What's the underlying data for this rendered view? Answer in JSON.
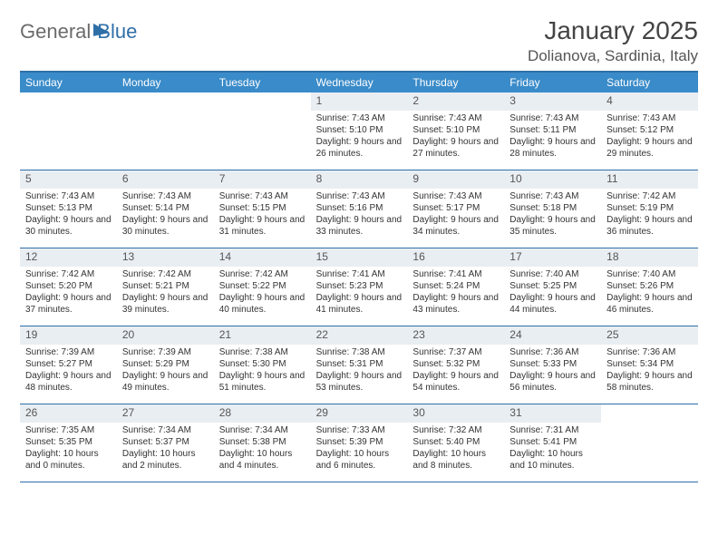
{
  "brand": {
    "part1": "General",
    "part2": "Blue"
  },
  "title": "January 2025",
  "location": "Dolianova, Sardinia, Italy",
  "colors": {
    "header_bg": "#3a8bc9",
    "border": "#2f6fa8",
    "daynum_bg": "#e9eef3",
    "text": "#333333",
    "logo_gray": "#6b6b6b"
  },
  "days_of_week": [
    "Sunday",
    "Monday",
    "Tuesday",
    "Wednesday",
    "Thursday",
    "Friday",
    "Saturday"
  ],
  "labels": {
    "sunrise": "Sunrise:",
    "sunset": "Sunset:",
    "daylight": "Daylight:"
  },
  "cells": [
    {
      "n": "",
      "blank": true
    },
    {
      "n": "",
      "blank": true
    },
    {
      "n": "",
      "blank": true
    },
    {
      "n": "1",
      "sr": "7:43 AM",
      "ss": "5:10 PM",
      "dl": "9 hours and 26 minutes."
    },
    {
      "n": "2",
      "sr": "7:43 AM",
      "ss": "5:10 PM",
      "dl": "9 hours and 27 minutes."
    },
    {
      "n": "3",
      "sr": "7:43 AM",
      "ss": "5:11 PM",
      "dl": "9 hours and 28 minutes."
    },
    {
      "n": "4",
      "sr": "7:43 AM",
      "ss": "5:12 PM",
      "dl": "9 hours and 29 minutes."
    },
    {
      "n": "5",
      "sr": "7:43 AM",
      "ss": "5:13 PM",
      "dl": "9 hours and 30 minutes."
    },
    {
      "n": "6",
      "sr": "7:43 AM",
      "ss": "5:14 PM",
      "dl": "9 hours and 30 minutes."
    },
    {
      "n": "7",
      "sr": "7:43 AM",
      "ss": "5:15 PM",
      "dl": "9 hours and 31 minutes."
    },
    {
      "n": "8",
      "sr": "7:43 AM",
      "ss": "5:16 PM",
      "dl": "9 hours and 33 minutes."
    },
    {
      "n": "9",
      "sr": "7:43 AM",
      "ss": "5:17 PM",
      "dl": "9 hours and 34 minutes."
    },
    {
      "n": "10",
      "sr": "7:43 AM",
      "ss": "5:18 PM",
      "dl": "9 hours and 35 minutes."
    },
    {
      "n": "11",
      "sr": "7:42 AM",
      "ss": "5:19 PM",
      "dl": "9 hours and 36 minutes."
    },
    {
      "n": "12",
      "sr": "7:42 AM",
      "ss": "5:20 PM",
      "dl": "9 hours and 37 minutes."
    },
    {
      "n": "13",
      "sr": "7:42 AM",
      "ss": "5:21 PM",
      "dl": "9 hours and 39 minutes."
    },
    {
      "n": "14",
      "sr": "7:42 AM",
      "ss": "5:22 PM",
      "dl": "9 hours and 40 minutes."
    },
    {
      "n": "15",
      "sr": "7:41 AM",
      "ss": "5:23 PM",
      "dl": "9 hours and 41 minutes."
    },
    {
      "n": "16",
      "sr": "7:41 AM",
      "ss": "5:24 PM",
      "dl": "9 hours and 43 minutes."
    },
    {
      "n": "17",
      "sr": "7:40 AM",
      "ss": "5:25 PM",
      "dl": "9 hours and 44 minutes."
    },
    {
      "n": "18",
      "sr": "7:40 AM",
      "ss": "5:26 PM",
      "dl": "9 hours and 46 minutes."
    },
    {
      "n": "19",
      "sr": "7:39 AM",
      "ss": "5:27 PM",
      "dl": "9 hours and 48 minutes."
    },
    {
      "n": "20",
      "sr": "7:39 AM",
      "ss": "5:29 PM",
      "dl": "9 hours and 49 minutes."
    },
    {
      "n": "21",
      "sr": "7:38 AM",
      "ss": "5:30 PM",
      "dl": "9 hours and 51 minutes."
    },
    {
      "n": "22",
      "sr": "7:38 AM",
      "ss": "5:31 PM",
      "dl": "9 hours and 53 minutes."
    },
    {
      "n": "23",
      "sr": "7:37 AM",
      "ss": "5:32 PM",
      "dl": "9 hours and 54 minutes."
    },
    {
      "n": "24",
      "sr": "7:36 AM",
      "ss": "5:33 PM",
      "dl": "9 hours and 56 minutes."
    },
    {
      "n": "25",
      "sr": "7:36 AM",
      "ss": "5:34 PM",
      "dl": "9 hours and 58 minutes."
    },
    {
      "n": "26",
      "sr": "7:35 AM",
      "ss": "5:35 PM",
      "dl": "10 hours and 0 minutes."
    },
    {
      "n": "27",
      "sr": "7:34 AM",
      "ss": "5:37 PM",
      "dl": "10 hours and 2 minutes."
    },
    {
      "n": "28",
      "sr": "7:34 AM",
      "ss": "5:38 PM",
      "dl": "10 hours and 4 minutes."
    },
    {
      "n": "29",
      "sr": "7:33 AM",
      "ss": "5:39 PM",
      "dl": "10 hours and 6 minutes."
    },
    {
      "n": "30",
      "sr": "7:32 AM",
      "ss": "5:40 PM",
      "dl": "10 hours and 8 minutes."
    },
    {
      "n": "31",
      "sr": "7:31 AM",
      "ss": "5:41 PM",
      "dl": "10 hours and 10 minutes."
    },
    {
      "n": "",
      "blank": true
    }
  ]
}
